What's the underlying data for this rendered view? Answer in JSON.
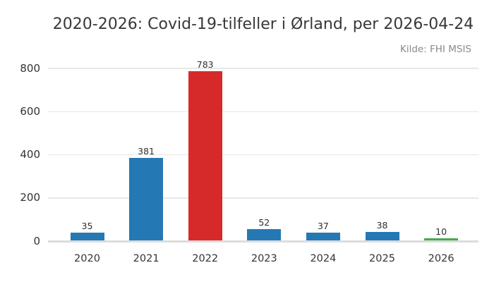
{
  "title": "2020-2026: Covid-19-tilfeller i Ørland, per 2026-04-24",
  "source": "Kilde: FHI MSIS",
  "colors": {
    "bar_blue": "#2478b4",
    "bar_red": "#d62a2a",
    "bar_green": "#45ab4b",
    "gridline": "#e7e7e7",
    "axis_line": "#dcdcdc",
    "title_text": "#383838",
    "source_text": "#8a8a8a",
    "tick_text": "#333333",
    "value_text": "#2e2e2e",
    "background": "#ffffff"
  },
  "chart_data": {
    "type": "bar",
    "title": "2020-2026: Covid-19-tilfeller i Ørland, per 2026-04-24",
    "subtitle": "Kilde: FHI MSIS",
    "categories": [
      "2020",
      "2021",
      "2022",
      "2023",
      "2024",
      "2025",
      "2026"
    ],
    "values": [
      35,
      381,
      783,
      52,
      37,
      38,
      10
    ],
    "value_labels_shown": true,
    "bar_colors": [
      "#2478b4",
      "#2478b4",
      "#d62a2a",
      "#2478b4",
      "#2478b4",
      "#2478b4",
      "#45ab4b"
    ],
    "xlabel": "",
    "ylabel": "",
    "ylim": [
      0,
      800
    ],
    "yticks": [
      0,
      200,
      400,
      600,
      800
    ],
    "grid": true,
    "legend": false
  }
}
